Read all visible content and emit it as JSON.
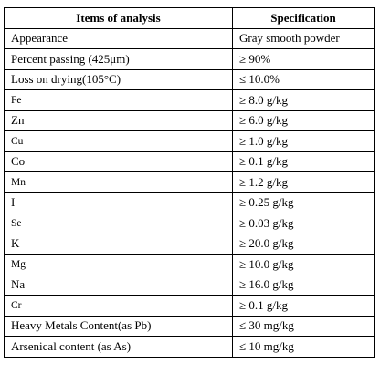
{
  "table": {
    "headers": [
      "Items of analysis",
      "Specification"
    ],
    "rows": [
      {
        "item": "Appearance",
        "spec": "Gray smooth powder",
        "small": false
      },
      {
        "item": "Percent passing (425μm)",
        "spec": "≥ 90%",
        "small": false
      },
      {
        "item": "Loss on drying(105°C)",
        "spec": "≤ 10.0%",
        "small": false
      },
      {
        "item": "Fe",
        "spec": "≥ 8.0 g/kg",
        "small": true
      },
      {
        "item": "Zn",
        "spec": "≥ 6.0 g/kg",
        "small": false
      },
      {
        "item": "Cu",
        "spec": "≥ 1.0 g/kg",
        "small": true
      },
      {
        "item": "Co",
        "spec": "≥ 0.1 g/kg",
        "small": false
      },
      {
        "item": "Mn",
        "spec": "≥ 1.2 g/kg",
        "small": true
      },
      {
        "item": "I",
        "spec": "≥ 0.25 g/kg",
        "small": false
      },
      {
        "item": "Se",
        "spec": "≥ 0.03 g/kg",
        "small": true
      },
      {
        "item": "K",
        "spec": "≥ 20.0 g/kg",
        "small": false
      },
      {
        "item": "Mg",
        "spec": "≥ 10.0 g/kg",
        "small": true
      },
      {
        "item": "Na",
        "spec": "≥ 16.0 g/kg",
        "small": false
      },
      {
        "item": "Cr",
        "spec": "≥ 0.1 g/kg",
        "small": true
      },
      {
        "item": "Heavy Metals Content(as Pb)",
        "spec": "≤ 30 mg/kg",
        "small": false
      },
      {
        "item": "Arsenical content (as As)",
        "spec": "≤ 10 mg/kg",
        "small": false
      }
    ]
  }
}
